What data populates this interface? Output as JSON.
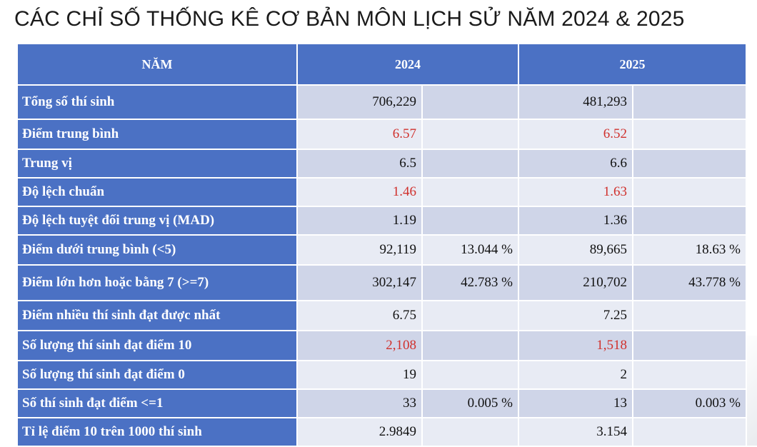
{
  "title": "CÁC CHỈ SỐ THỐNG KÊ CƠ BẢN MÔN LỊCH SỬ NĂM 2024 & 2025",
  "header": {
    "year_label": "NĂM",
    "year1": "2024",
    "year2": "2025"
  },
  "rows": [
    {
      "label": "Tổng số thí sinh",
      "v2024": "706,229",
      "p2024": "",
      "v2025": "481,293",
      "p2025": ""
    },
    {
      "label": "Điểm trung bình",
      "v2024": "6.57",
      "p2024": "",
      "v2025": "6.52",
      "p2025": ""
    },
    {
      "label": "Trung vị",
      "v2024": "6.5",
      "p2024": "",
      "v2025": "6.6",
      "p2025": ""
    },
    {
      "label": "Độ lệch chuẩn",
      "v2024": "1.46",
      "p2024": "",
      "v2025": "1.63",
      "p2025": ""
    },
    {
      "label": "Độ lệch tuyệt đối trung vị (MAD)",
      "v2024": "1.19",
      "p2024": "",
      "v2025": "1.36",
      "p2025": ""
    },
    {
      "label": "Điểm dưới trung bình (<5)",
      "v2024": "92,119",
      "p2024": "13.044 %",
      "v2025": "89,665",
      "p2025": "18.63 %"
    },
    {
      "label": "Điểm lớn hơn hoặc bằng 7 (>=7)",
      "v2024": "302,147",
      "p2024": "42.783 %",
      "v2025": "210,702",
      "p2025": "43.778 %"
    },
    {
      "label": "Điểm nhiều thí sinh đạt được nhất",
      "v2024": "6.75",
      "p2024": "",
      "v2025": "7.25",
      "p2025": ""
    },
    {
      "label": "Số lượng thí sinh đạt điểm 10",
      "v2024": "2,108",
      "p2024": "",
      "v2025": "1,518",
      "p2025": ""
    },
    {
      "label": "Số lượng thí sinh đạt điểm 0",
      "v2024": "19",
      "p2024": "",
      "v2025": "2",
      "p2025": ""
    },
    {
      "label": "Số thí sinh đạt điểm <=1",
      "v2024": "33",
      "p2024": "0.005 %",
      "v2025": "13",
      "p2025": "0.003 %"
    },
    {
      "label": "Tỉ lệ điểm 10 trên 1000 thí sinh",
      "v2024": "2.9849",
      "p2024": "",
      "v2025": "3.154",
      "p2025": ""
    }
  ],
  "colors": {
    "header_bg": "#4b71c4",
    "row_dark": "#cfd5e8",
    "row_light": "#e8ebf4",
    "highlight_text": "#d0312d"
  }
}
